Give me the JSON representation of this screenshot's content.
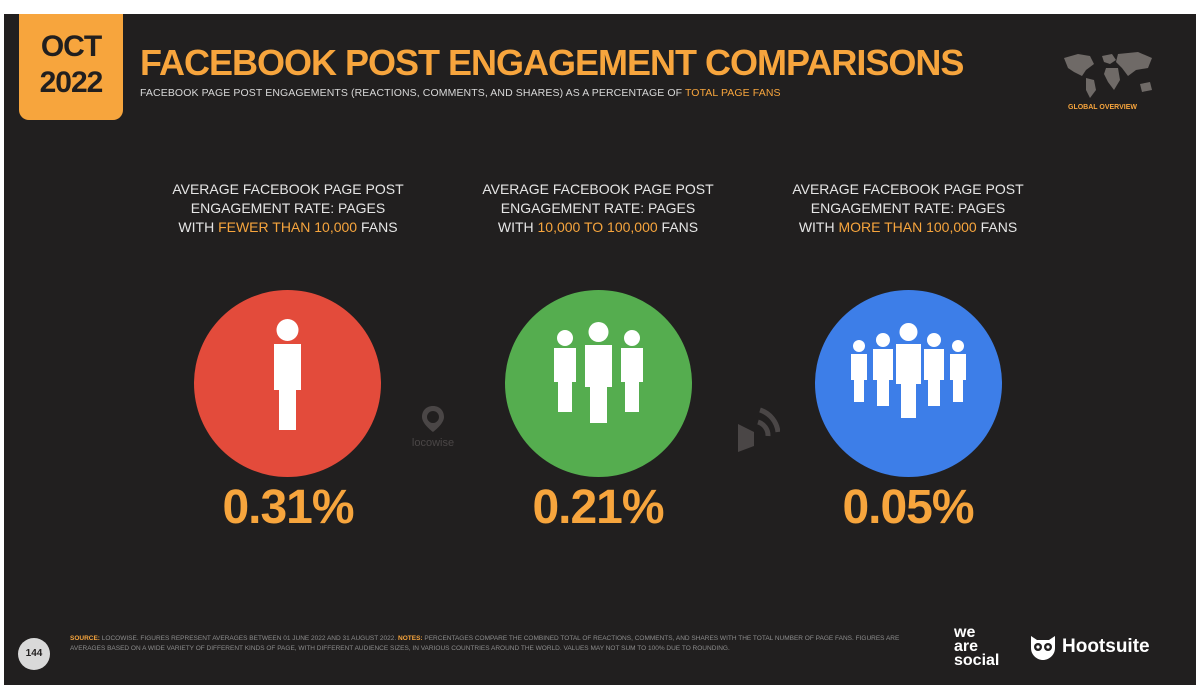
{
  "header": {
    "month": "OCT",
    "year": "2022",
    "title": "FACEBOOK POST ENGAGEMENT COMPARISONS",
    "subtitle_main": "FACEBOOK PAGE POST ENGAGEMENTS (REACTIONS, COMMENTS, AND SHARES) AS A PERCENTAGE OF ",
    "subtitle_accent": "TOTAL PAGE FANS",
    "region_label": "GLOBAL OVERVIEW"
  },
  "colors": {
    "background": "#211f1f",
    "accent": "#f7a53d",
    "red": "#e34b3b",
    "green": "#55ad4f",
    "blue": "#3d7ee8"
  },
  "columns": [
    {
      "label_line1": "AVERAGE FACEBOOK PAGE POST",
      "label_line2": "ENGAGEMENT RATE: PAGES",
      "label_pre": "WITH ",
      "label_accent": "FEWER THAN 10,000",
      "label_post": " FANS",
      "icon": "single-person-icon",
      "value": "0.31%"
    },
    {
      "label_line1": "AVERAGE FACEBOOK PAGE POST",
      "label_line2": "ENGAGEMENT RATE: PAGES",
      "label_pre": "WITH ",
      "label_accent": "10,000 TO 100,000",
      "label_post": " FANS",
      "icon": "three-people-icon",
      "value": "0.21%"
    },
    {
      "label_line1": "AVERAGE FACEBOOK PAGE POST",
      "label_line2": "ENGAGEMENT RATE: PAGES",
      "label_pre": "WITH ",
      "label_accent": "MORE THAN 100,000",
      "label_post": " FANS",
      "icon": "five-people-icon",
      "value": "0.05%"
    }
  ],
  "watermarks": {
    "locowise": "locowise"
  },
  "footer": {
    "page_number": "144",
    "source_label": "SOURCE:",
    "source_text": " LOCOWISE. FIGURES REPRESENT AVERAGES BETWEEN 01 JUNE 2022 AND 31 AUGUST 2022. ",
    "notes_label": "NOTES:",
    "notes_text": " PERCENTAGES COMPARE THE COMBINED TOTAL OF REACTIONS, COMMENTS, AND SHARES WITH THE TOTAL NUMBER OF PAGE FANS. FIGURES ARE AVERAGES BASED ON A WIDE VARIETY OF DIFFERENT KINDS OF PAGE, WITH DIFFERENT AUDIENCE SIZES, IN VARIOUS COUNTRIES AROUND THE WORLD. VALUES MAY NOT SUM TO 100% DUE TO ROUNDING.",
    "was_line1": "we",
    "was_line2": "are",
    "was_line3": "social",
    "hootsuite": "Hootsuite"
  }
}
